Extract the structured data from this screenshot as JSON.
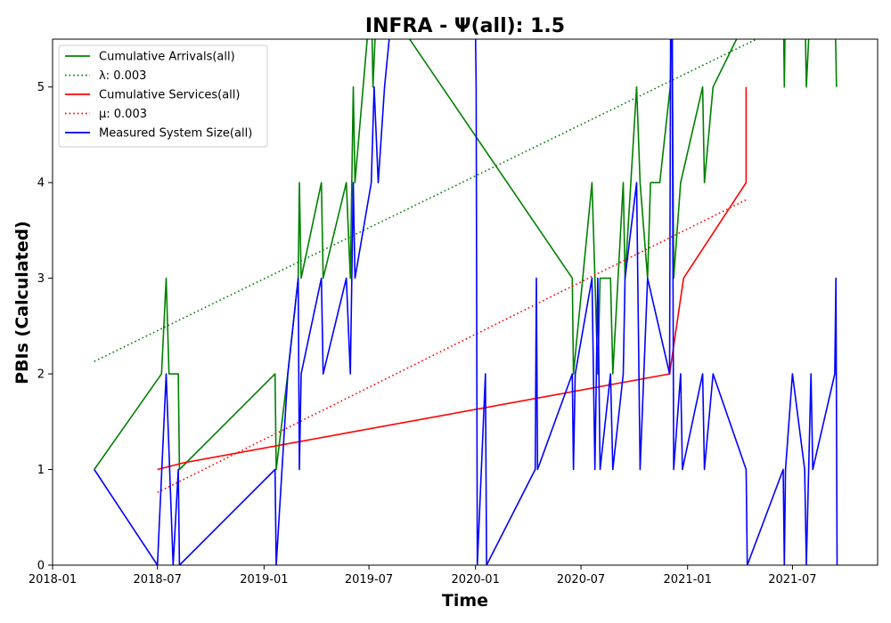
{
  "chart_data": {
    "type": "line",
    "title": "INFRA -  Ψ(all): 1.5",
    "xlabel": "Time",
    "ylabel": "PBIs (Calculated)",
    "xlim": [
      "2018-01-01",
      "2021-11-25"
    ],
    "ylim": [
      0,
      5.5
    ],
    "x_ticks": [
      "2018-01",
      "2018-07",
      "2019-01",
      "2019-07",
      "2020-01",
      "2020-07",
      "2021-01",
      "2021-07"
    ],
    "y_ticks": [
      "0",
      "1",
      "2",
      "3",
      "4",
      "5"
    ],
    "grid": false,
    "legend_position": "upper-left",
    "series": [
      {
        "name": "Cumulative Arrivals(all)",
        "color": "#008000",
        "style": "solid",
        "points": [
          [
            "2018-03-14",
            1
          ],
          [
            "2018-07-08",
            2
          ],
          [
            "2018-07-16",
            3
          ],
          [
            "2018-07-21",
            2
          ],
          [
            "2018-08-06",
            2
          ],
          [
            "2018-08-08",
            1
          ],
          [
            "2019-01-20",
            2
          ],
          [
            "2019-01-22",
            1
          ],
          [
            "2019-02-11",
            2
          ],
          [
            "2019-03-01",
            3
          ],
          [
            "2019-03-03",
            4
          ],
          [
            "2019-03-06",
            3
          ],
          [
            "2019-04-10",
            4
          ],
          [
            "2019-04-13",
            3
          ],
          [
            "2019-05-23",
            4
          ],
          [
            "2019-05-30",
            3
          ],
          [
            "2019-06-04",
            5
          ],
          [
            "2019-06-07",
            4
          ],
          [
            "2019-07-05",
            6
          ],
          [
            "2019-07-08",
            5
          ],
          [
            "2019-07-15",
            6
          ],
          [
            "2020-06-16",
            3
          ],
          [
            "2020-06-18",
            2
          ],
          [
            "2020-07-20",
            4
          ],
          [
            "2020-07-25",
            3
          ],
          [
            "2020-07-30",
            2
          ],
          [
            "2020-08-03",
            3
          ],
          [
            "2020-08-21",
            3
          ],
          [
            "2020-08-25",
            2
          ],
          [
            "2020-09-12",
            4
          ],
          [
            "2020-09-15",
            3
          ],
          [
            "2020-10-05",
            5
          ],
          [
            "2020-10-11",
            4
          ],
          [
            "2020-10-24",
            3
          ],
          [
            "2020-10-29",
            4
          ],
          [
            "2020-11-14",
            4
          ],
          [
            "2020-12-02",
            5
          ],
          [
            "2020-12-05",
            6
          ],
          [
            "2020-12-08",
            3
          ],
          [
            "2020-12-20",
            4
          ],
          [
            "2021-01-27",
            5
          ],
          [
            "2021-01-30",
            4
          ],
          [
            "2021-02-14",
            5
          ],
          [
            "2021-05-06",
            6
          ],
          [
            "2021-06-15",
            6
          ],
          [
            "2021-06-17",
            5
          ],
          [
            "2021-06-19",
            6
          ],
          [
            "2021-07-22",
            6
          ],
          [
            "2021-07-25",
            5
          ],
          [
            "2021-08-02",
            6
          ],
          [
            "2021-09-12",
            6
          ],
          [
            "2021-09-15",
            5
          ]
        ]
      },
      {
        "name": "λ: 0.003",
        "color": "#008000",
        "style": "dotted",
        "points": [
          [
            "2018-03-14",
            2.13
          ],
          [
            "2021-04-30",
            5.5
          ]
        ]
      },
      {
        "name": "Cumulative Services(all)",
        "color": "#ff0000",
        "style": "solid",
        "points": [
          [
            "2018-07-01",
            1
          ],
          [
            "2018-08-15",
            1.07
          ],
          [
            "2020-12-01",
            2
          ],
          [
            "2020-12-25",
            3
          ],
          [
            "2021-04-12",
            4
          ],
          [
            "2021-04-12",
            5
          ]
        ]
      },
      {
        "name": "μ: 0.003",
        "color": "#ff0000",
        "style": "dotted",
        "points": [
          [
            "2018-07-01",
            0.76
          ],
          [
            "2021-04-12",
            3.82
          ]
        ]
      },
      {
        "name": "Measured System Size(all)",
        "color": "#0000ff",
        "style": "solid",
        "points": [
          [
            "2018-03-14",
            1
          ],
          [
            "2018-07-01",
            0
          ],
          [
            "2018-07-16",
            2
          ],
          [
            "2018-07-28",
            0
          ],
          [
            "2018-08-06",
            1
          ],
          [
            "2018-08-08",
            0
          ],
          [
            "2019-01-20",
            1
          ],
          [
            "2019-01-22",
            0
          ],
          [
            "2019-02-11",
            2
          ],
          [
            "2019-03-01",
            3
          ],
          [
            "2019-03-03",
            1
          ],
          [
            "2019-03-06",
            2
          ],
          [
            "2019-04-10",
            3
          ],
          [
            "2019-04-13",
            2
          ],
          [
            "2019-05-23",
            3
          ],
          [
            "2019-05-30",
            2
          ],
          [
            "2019-06-04",
            4
          ],
          [
            "2019-06-07",
            3
          ],
          [
            "2019-07-05",
            4
          ],
          [
            "2019-07-10",
            5
          ],
          [
            "2019-07-17",
            4
          ],
          [
            "2019-07-28",
            5
          ],
          [
            "2019-08-13",
            6
          ],
          [
            "2019-12-31",
            6
          ],
          [
            "2020-01-02",
            5
          ],
          [
            "2020-01-04",
            0
          ],
          [
            "2020-01-18",
            2
          ],
          [
            "2020-01-20",
            0
          ],
          [
            "2020-04-13",
            1
          ],
          [
            "2020-04-15",
            3
          ],
          [
            "2020-04-17",
            1
          ],
          [
            "2020-06-16",
            2
          ],
          [
            "2020-06-18",
            1
          ],
          [
            "2020-06-21",
            2
          ],
          [
            "2020-07-20",
            3
          ],
          [
            "2020-07-25",
            1
          ],
          [
            "2020-07-30",
            3
          ],
          [
            "2020-08-03",
            1
          ],
          [
            "2020-08-21",
            2
          ],
          [
            "2020-08-25",
            1
          ],
          [
            "2020-09-12",
            2
          ],
          [
            "2020-09-15",
            3
          ],
          [
            "2020-10-05",
            4
          ],
          [
            "2020-10-11",
            1
          ],
          [
            "2020-10-24",
            3
          ],
          [
            "2020-12-01",
            2
          ],
          [
            "2020-12-03",
            6
          ],
          [
            "2020-12-05",
            6
          ],
          [
            "2020-12-08",
            1
          ],
          [
            "2020-12-20",
            2
          ],
          [
            "2020-12-23",
            1
          ],
          [
            "2021-01-27",
            2
          ],
          [
            "2021-01-30",
            1
          ],
          [
            "2021-02-14",
            2
          ],
          [
            "2021-04-12",
            1
          ],
          [
            "2021-04-14",
            0
          ],
          [
            "2021-06-15",
            1
          ],
          [
            "2021-06-17",
            0
          ],
          [
            "2021-06-19",
            1
          ],
          [
            "2021-07-01",
            2
          ],
          [
            "2021-07-22",
            1
          ],
          [
            "2021-07-25",
            0
          ],
          [
            "2021-08-02",
            2
          ],
          [
            "2021-08-05",
            1
          ],
          [
            "2021-09-12",
            2
          ],
          [
            "2021-09-14",
            3
          ],
          [
            "2021-09-16",
            0
          ]
        ]
      }
    ]
  }
}
